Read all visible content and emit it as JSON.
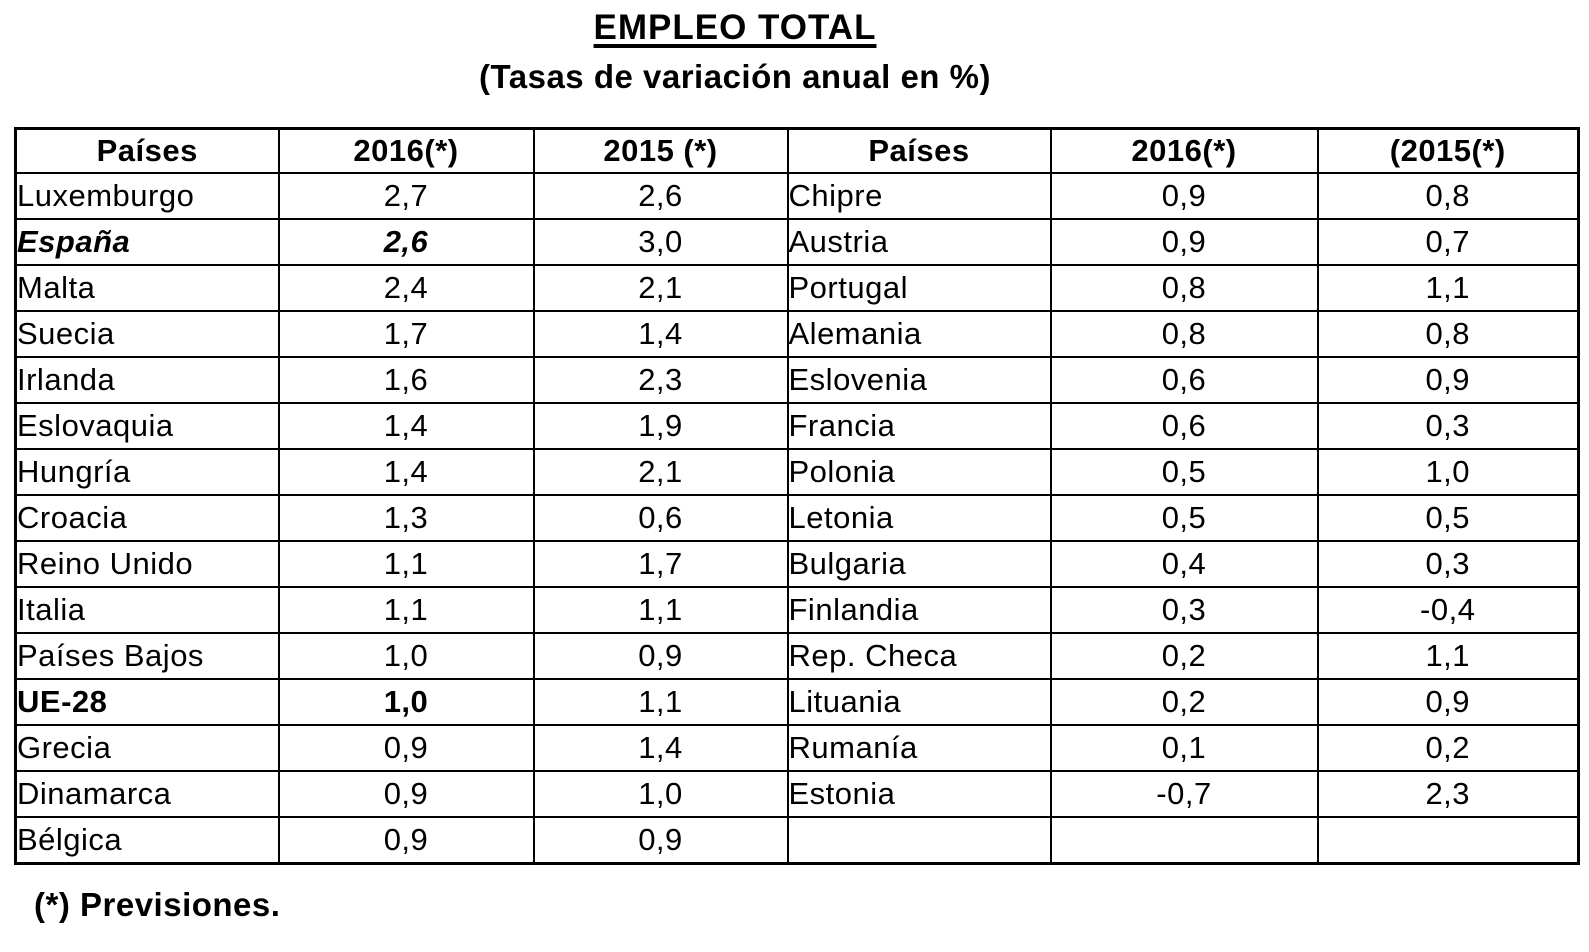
{
  "title": "EMPLEO TOTAL",
  "subtitle": "(Tasas de variación anual en %)",
  "footnote": "(*) Previsiones.",
  "table": {
    "column_headers": [
      "Países",
      "2016(*)",
      "2015 (*)",
      "Países",
      "2016(*)",
      "(2015(*)"
    ],
    "rows": [
      {
        "left": {
          "country": "Luxemburgo",
          "y2016": "2,7",
          "y2015": "2,6",
          "emphasis": null
        },
        "right": {
          "country": "Chipre",
          "y2016": "0,9",
          "y2015": "0,8",
          "emphasis": null
        }
      },
      {
        "left": {
          "country": "España",
          "y2016": "2,6",
          "y2015": "3,0",
          "emphasis": "italic"
        },
        "right": {
          "country": "Austria",
          "y2016": "0,9",
          "y2015": "0,7",
          "emphasis": null
        }
      },
      {
        "left": {
          "country": "Malta",
          "y2016": "2,4",
          "y2015": "2,1",
          "emphasis": null
        },
        "right": {
          "country": "Portugal",
          "y2016": "0,8",
          "y2015": "1,1",
          "emphasis": null
        }
      },
      {
        "left": {
          "country": "Suecia",
          "y2016": "1,7",
          "y2015": "1,4",
          "emphasis": null
        },
        "right": {
          "country": "Alemania",
          "y2016": "0,8",
          "y2015": "0,8",
          "emphasis": null
        }
      },
      {
        "left": {
          "country": "Irlanda",
          "y2016": "1,6",
          "y2015": "2,3",
          "emphasis": null
        },
        "right": {
          "country": "Eslovenia",
          "y2016": "0,6",
          "y2015": "0,9",
          "emphasis": null
        }
      },
      {
        "left": {
          "country": "Eslovaquia",
          "y2016": "1,4",
          "y2015": "1,9",
          "emphasis": null
        },
        "right": {
          "country": "Francia",
          "y2016": "0,6",
          "y2015": "0,3",
          "emphasis": null
        }
      },
      {
        "left": {
          "country": "Hungría",
          "y2016": "1,4",
          "y2015": "2,1",
          "emphasis": null
        },
        "right": {
          "country": "Polonia",
          "y2016": "0,5",
          "y2015": "1,0",
          "emphasis": null
        }
      },
      {
        "left": {
          "country": "Croacia",
          "y2016": "1,3",
          "y2015": "0,6",
          "emphasis": null
        },
        "right": {
          "country": "Letonia",
          "y2016": "0,5",
          "y2015": "0,5",
          "emphasis": null
        }
      },
      {
        "left": {
          "country": "Reino Unido",
          "y2016": "1,1",
          "y2015": "1,7",
          "emphasis": null
        },
        "right": {
          "country": "Bulgaria",
          "y2016": "0,4",
          "y2015": "0,3",
          "emphasis": null
        }
      },
      {
        "left": {
          "country": "Italia",
          "y2016": "1,1",
          "y2015": "1,1",
          "emphasis": null
        },
        "right": {
          "country": "Finlandia",
          "y2016": "0,3",
          "y2015": "-0,4",
          "emphasis": null
        }
      },
      {
        "left": {
          "country": "Países Bajos",
          "y2016": "1,0",
          "y2015": "0,9",
          "emphasis": null
        },
        "right": {
          "country": "Rep. Checa",
          "y2016": "0,2",
          "y2015": "1,1",
          "emphasis": null
        }
      },
      {
        "left": {
          "country": "UE-28",
          "y2016": "1,0",
          "y2015": "1,1",
          "emphasis": "bold"
        },
        "right": {
          "country": "Lituania",
          "y2016": "0,2",
          "y2015": "0,9",
          "emphasis": null
        }
      },
      {
        "left": {
          "country": "Grecia",
          "y2016": "0,9",
          "y2015": "1,4",
          "emphasis": null
        },
        "right": {
          "country": "Rumanía",
          "y2016": "0,1",
          "y2015": "0,2",
          "emphasis": null
        }
      },
      {
        "left": {
          "country": "Dinamarca",
          "y2016": "0,9",
          "y2015": "1,0",
          "emphasis": null
        },
        "right": {
          "country": "Estonia",
          "y2016": "-0,7",
          "y2015": "2,3",
          "emphasis": null
        }
      },
      {
        "left": {
          "country": "Bélgica",
          "y2016": "0,9",
          "y2015": "0,9",
          "emphasis": null
        },
        "right": {
          "country": "",
          "y2016": "",
          "y2015": "",
          "emphasis": null
        }
      }
    ]
  },
  "colors": {
    "text": "#000000",
    "background": "#ffffff",
    "border": "#000000"
  }
}
